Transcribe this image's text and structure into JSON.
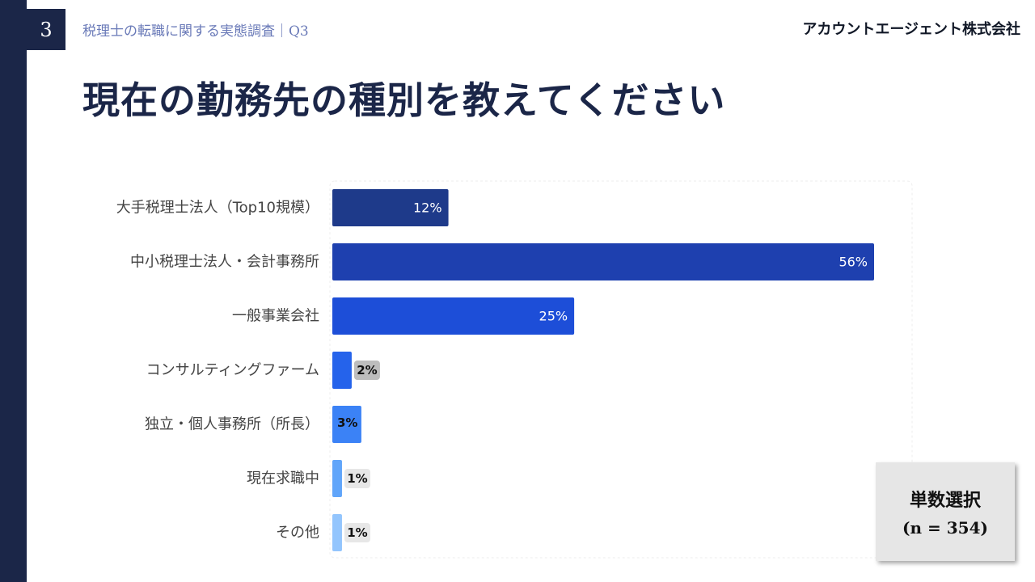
{
  "header": {
    "page_number": "3",
    "breadcrumb": "税理士の転職に関する実態調査｜Q3",
    "company": "アカウントエージェント株式会社"
  },
  "slide": {
    "title": "現在の勤務先の種別を教えてください"
  },
  "note": {
    "line1": "単数選択",
    "line2": "(n = 354)"
  },
  "chart_data": {
    "type": "bar",
    "orientation": "horizontal",
    "categories": [
      "大手税理士法人（Top10規模）",
      "中小税理士法人・会計事務所",
      "一般事業会社",
      "コンサルティングファーム",
      "独立・個人事務所（所長）",
      "現在求職中",
      "その他"
    ],
    "values": [
      12,
      56,
      25,
      2,
      3,
      1,
      1
    ],
    "value_labels": [
      "12%",
      "56%",
      "25%",
      "2%",
      "3%",
      "1%",
      "1%"
    ],
    "colors": [
      "#1e3a8a",
      "#1e40af",
      "#1d4ed8",
      "#2563eb",
      "#3b82f6",
      "#60a5fa",
      "#93c5fd"
    ],
    "xlim": [
      0,
      60
    ],
    "grid": false
  }
}
